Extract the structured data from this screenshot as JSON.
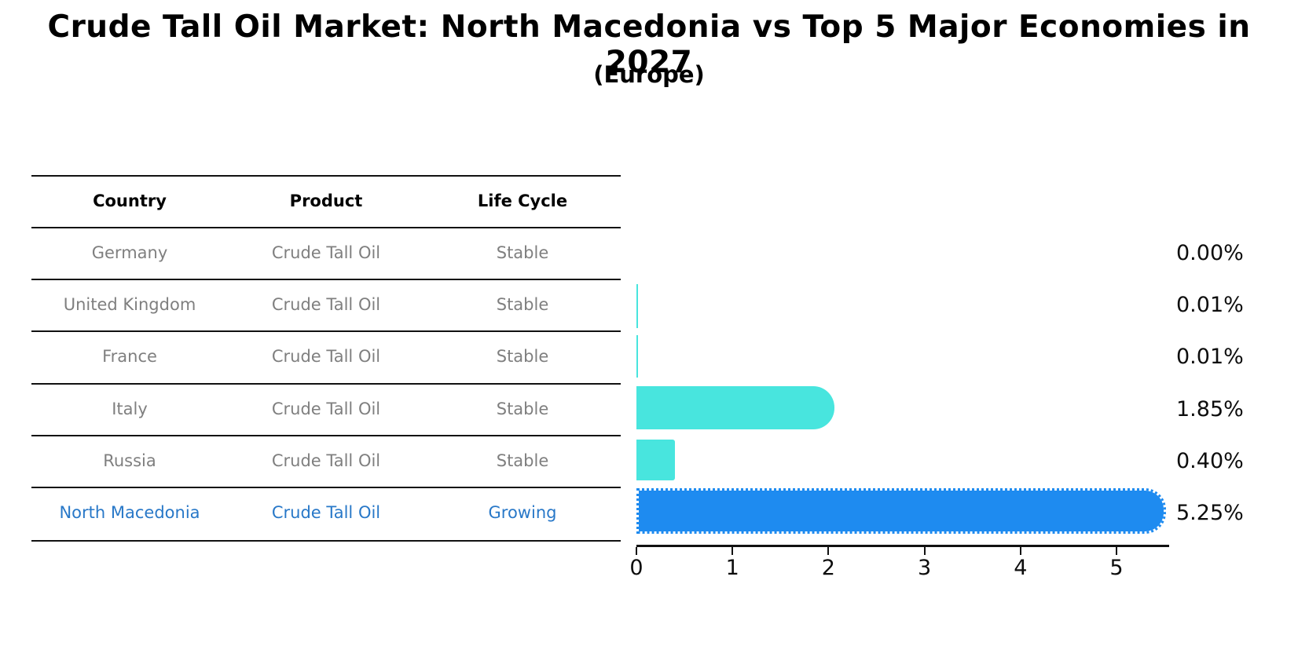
{
  "title": "Crude Tall Oil Market: North Macedonia vs Top 5 Major Economies in 2027",
  "subtitle": "(Europe)",
  "table": {
    "headers": [
      "Country",
      "Product",
      "Life Cycle"
    ],
    "rows": [
      {
        "country": "Germany",
        "product": "Crude Tall Oil",
        "life_cycle": "Stable",
        "value_label": "0.00%"
      },
      {
        "country": "United Kingdom",
        "product": "Crude Tall Oil",
        "life_cycle": "Stable",
        "value_label": "0.01%"
      },
      {
        "country": "France",
        "product": "Crude Tall Oil",
        "life_cycle": "Stable",
        "value_label": "0.01%"
      },
      {
        "country": "Italy",
        "product": "Crude Tall Oil",
        "life_cycle": "Stable",
        "value_label": "1.85%"
      },
      {
        "country": "Russia",
        "product": "Crude Tall Oil",
        "life_cycle": "Stable",
        "value_label": "0.40%"
      },
      {
        "country": "North Macedonia",
        "product": "Crude Tall Oil",
        "life_cycle": "Growing",
        "value_label": "5.25%"
      }
    ]
  },
  "chart_data": {
    "type": "bar",
    "orientation": "horizontal",
    "title": "Crude Tall Oil Market: North Macedonia vs Top 5 Major Economies in 2027 (Europe)",
    "categories": [
      "Germany",
      "United Kingdom",
      "France",
      "Italy",
      "Russia",
      "North Macedonia"
    ],
    "values": [
      0.0,
      0.01,
      0.01,
      1.85,
      0.4,
      5.25
    ],
    "value_labels": [
      "0.00%",
      "0.01%",
      "0.01%",
      "1.85%",
      "0.40%",
      "5.25%"
    ],
    "highlight_index": 5,
    "x_ticks": [
      0,
      1,
      2,
      3,
      4,
      5
    ],
    "xlim": [
      0,
      5.55
    ],
    "xlabel": "",
    "ylabel": "",
    "grid": false,
    "legend": false
  },
  "colors": {
    "bar_normal": "#48E5DE",
    "bar_highlight": "#1E8BF0",
    "highlight_text": "#2878C8",
    "muted_text": "#7f7f7f",
    "axis_line": "#111111"
  }
}
